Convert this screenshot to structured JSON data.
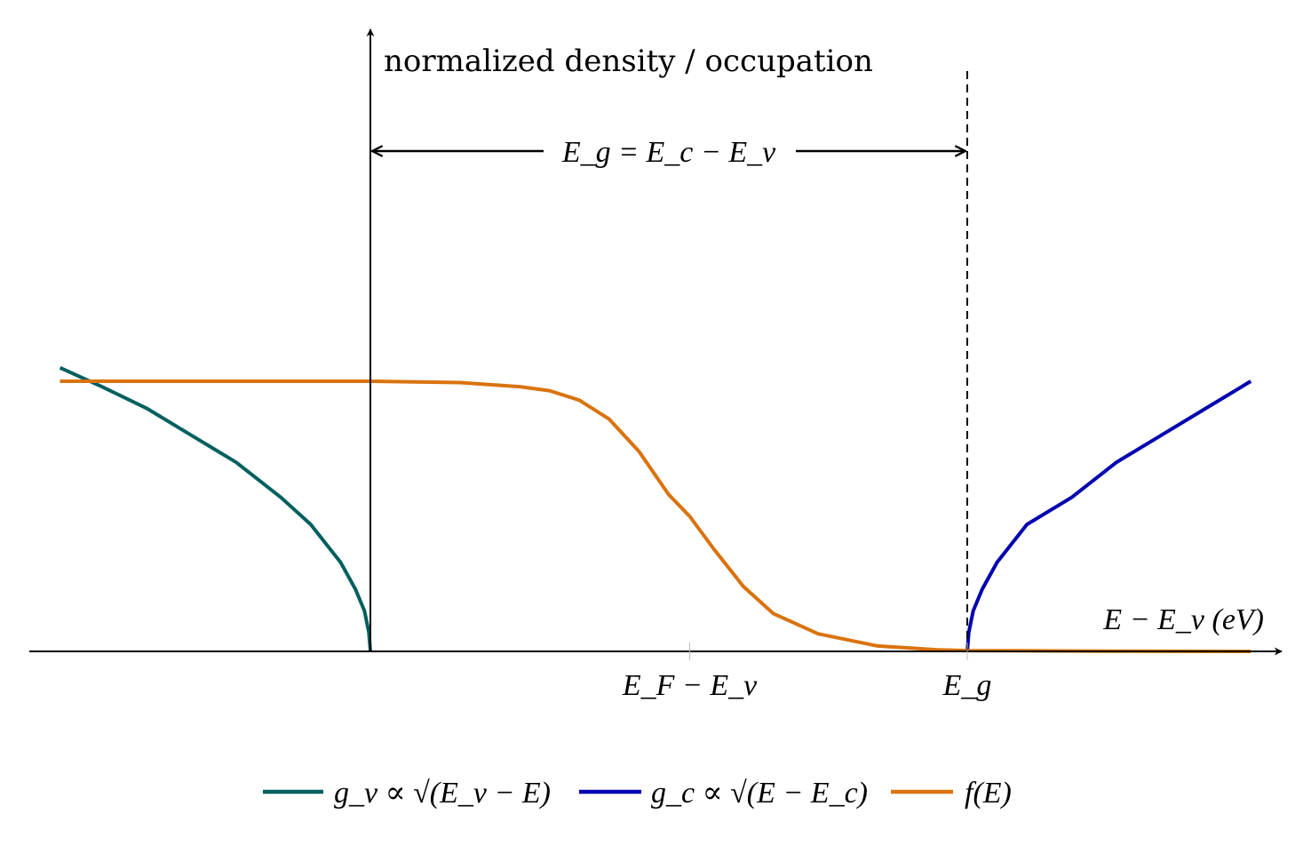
{
  "chart_data": {
    "type": "line",
    "title": "",
    "xlabel": "E − E_v (eV)",
    "ylabel": "normalized density / occupation",
    "x_ticks": [
      {
        "value": 1.07,
        "label": "E_F − E_v"
      },
      {
        "value": 2.0,
        "label": "E_g"
      }
    ],
    "gap_annotation": "E_g = E_c − E_v",
    "gap": {
      "Ev": 0.0,
      "Ec": 2.0
    },
    "dashed_line_x": 2.0,
    "xlim": [
      -1.1,
      3.05
    ],
    "ylim": [
      0,
      1.35
    ],
    "grid": false,
    "legend_position": "bottom-center",
    "series": [
      {
        "name": "g_v ∝ √(E_v − E)",
        "color": "#00605f",
        "x": [
          -1.04,
          -0.9,
          -0.75,
          -0.6,
          -0.45,
          -0.3,
          -0.2,
          -0.1,
          -0.05,
          -0.02,
          -0.005,
          0.0
        ],
        "y": [
          1.05,
          0.98,
          0.9,
          0.8,
          0.7,
          0.57,
          0.47,
          0.33,
          0.23,
          0.15,
          0.07,
          0.0
        ]
      },
      {
        "name": "g_c ∝ √(E − E_c)",
        "color": "#0000b0",
        "x": [
          2.0,
          2.005,
          2.02,
          2.05,
          2.1,
          2.2,
          2.35,
          2.5,
          2.65,
          2.8,
          2.95
        ],
        "y": [
          0.0,
          0.07,
          0.15,
          0.23,
          0.33,
          0.47,
          0.57,
          0.7,
          0.8,
          0.9,
          1.0
        ],
        "_": null
      },
      {
        "name": "f(E)",
        "color": "#d9730d",
        "x": [
          -1.04,
          -0.5,
          0.0,
          0.3,
          0.5,
          0.6,
          0.7,
          0.8,
          0.9,
          1.0,
          1.07,
          1.15,
          1.25,
          1.35,
          1.5,
          1.7,
          1.9,
          2.0,
          2.5,
          2.95
        ],
        "y": [
          1.0,
          1.0,
          1.0,
          0.995,
          0.98,
          0.965,
          0.93,
          0.86,
          0.74,
          0.58,
          0.5,
          0.38,
          0.24,
          0.14,
          0.065,
          0.02,
          0.006,
          0.003,
          0.001,
          0.0
        ]
      }
    ]
  }
}
